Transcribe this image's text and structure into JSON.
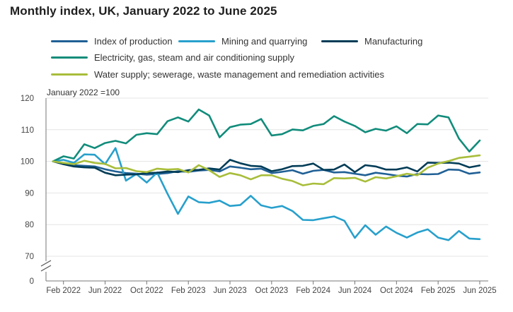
{
  "chart_data": {
    "type": "line",
    "title": "Monthly index, UK, January 2022 to June 2025",
    "ylabel": "January 2022 =100",
    "ylim": [
      0,
      120
    ],
    "y_visible_range": [
      66,
      121
    ],
    "yticks": [
      0,
      70,
      80,
      90,
      100,
      110,
      120
    ],
    "axis_break": true,
    "xtick_labels": [
      "Feb 2022",
      "Jun 2022",
      "Oct 2022",
      "Feb 2023",
      "Jun 2023",
      "Oct 2023",
      "Feb 2024",
      "Jun 2024",
      "Oct 2024",
      "Feb 2025",
      "Jun 2025"
    ],
    "xtick_month_index": [
      1,
      5,
      9,
      13,
      17,
      21,
      25,
      29,
      33,
      37,
      41
    ],
    "x": [
      "Jan 2022",
      "Feb 2022",
      "Mar 2022",
      "Apr 2022",
      "May 2022",
      "Jun 2022",
      "Jul 2022",
      "Aug 2022",
      "Sep 2022",
      "Oct 2022",
      "Nov 2022",
      "Dec 2022",
      "Jan 2023",
      "Feb 2023",
      "Mar 2023",
      "Apr 2023",
      "May 2023",
      "Jun 2023",
      "Jul 2023",
      "Aug 2023",
      "Sep 2023",
      "Oct 2023",
      "Nov 2023",
      "Dec 2023",
      "Jan 2024",
      "Feb 2024",
      "Mar 2024",
      "Apr 2024",
      "May 2024",
      "Jun 2024",
      "Jul 2024",
      "Aug 2024",
      "Sep 2024",
      "Oct 2024",
      "Nov 2024",
      "Dec 2024",
      "Jan 2025",
      "Feb 2025",
      "Mar 2025",
      "Apr 2025",
      "May 2025",
      "Jun 2025"
    ],
    "series": [
      {
        "name": "Index of production",
        "color": "#206095",
        "values": [
          100,
          99.4,
          98.8,
          98.6,
          98.4,
          97.5,
          96.8,
          96.3,
          96.1,
          95.8,
          96.0,
          96.3,
          96.9,
          96.7,
          97.1,
          97.3,
          96.8,
          98.4,
          98.0,
          97.5,
          97.7,
          96.3,
          96.7,
          97.2,
          96.1,
          97.0,
          97.3,
          96.5,
          96.6,
          96.1,
          95.6,
          96.4,
          96.0,
          95.5,
          95.2,
          96.0,
          95.9,
          96.0,
          97.4,
          97.3,
          96.1,
          96.5
        ]
      },
      {
        "name": "Mining and quarrying",
        "color": "#27a0cc",
        "values": [
          100,
          100.5,
          99.5,
          102.2,
          102.1,
          99.1,
          104.2,
          93.9,
          96.0,
          93.3,
          96.5,
          89.7,
          83.4,
          88.9,
          87.1,
          86.9,
          87.6,
          85.9,
          86.2,
          89.1,
          86.1,
          85.3,
          85.9,
          84.3,
          81.5,
          81.4,
          82.0,
          82.6,
          81.2,
          75.8,
          79.8,
          76.8,
          79.4,
          77.4,
          75.9,
          77.5,
          78.5,
          75.9,
          75.1,
          78.0,
          75.6,
          75.4
        ]
      },
      {
        "name": "Manufacturing",
        "color": "#003c57",
        "values": [
          100,
          99.1,
          98.4,
          98.1,
          98.0,
          96.4,
          95.6,
          95.8,
          95.9,
          96.3,
          96.4,
          96.8,
          96.6,
          97.2,
          97.3,
          97.8,
          97.4,
          100.5,
          99.4,
          98.6,
          98.4,
          96.9,
          97.5,
          98.5,
          98.6,
          99.3,
          97.3,
          97.4,
          99.0,
          96.6,
          98.8,
          98.4,
          97.4,
          97.4,
          98.1,
          96.8,
          99.6,
          99.5,
          99.6,
          99.3,
          98.1,
          98.7
        ]
      },
      {
        "name": "Electricity, gas, steam and air conditioning supply",
        "color": "#118c7b",
        "values": [
          100,
          101.6,
          100.9,
          105.4,
          104.2,
          105.8,
          106.5,
          105.7,
          108.4,
          108.9,
          108.6,
          112.7,
          113.9,
          112.6,
          116.4,
          114.5,
          107.6,
          110.8,
          111.6,
          111.8,
          113.4,
          108.2,
          108.6,
          110.1,
          109.8,
          111.2,
          111.8,
          114.3,
          112.6,
          111.2,
          109.2,
          110.3,
          109.7,
          111.1,
          108.9,
          111.8,
          111.7,
          114.5,
          113.9,
          107.2,
          103.1,
          106.6
        ]
      },
      {
        "name": "Water supply; sewerage, waste management and remediation activities",
        "color": "#a8bd3a",
        "values": [
          100,
          99.5,
          99.1,
          100.2,
          99.5,
          99.2,
          97.8,
          97.9,
          96.9,
          96.6,
          97.7,
          97.4,
          97.6,
          96.5,
          98.8,
          97.2,
          95.1,
          96.3,
          95.6,
          94.3,
          95.6,
          95.6,
          94.5,
          93.8,
          92.4,
          93.0,
          92.8,
          94.7,
          94.6,
          94.8,
          93.6,
          95.0,
          94.6,
          95.3,
          96.1,
          95.6,
          98.0,
          99.3,
          100.1,
          101.1,
          101.5,
          101.9
        ]
      }
    ],
    "grid": "horizontal",
    "legend_position": "top"
  }
}
